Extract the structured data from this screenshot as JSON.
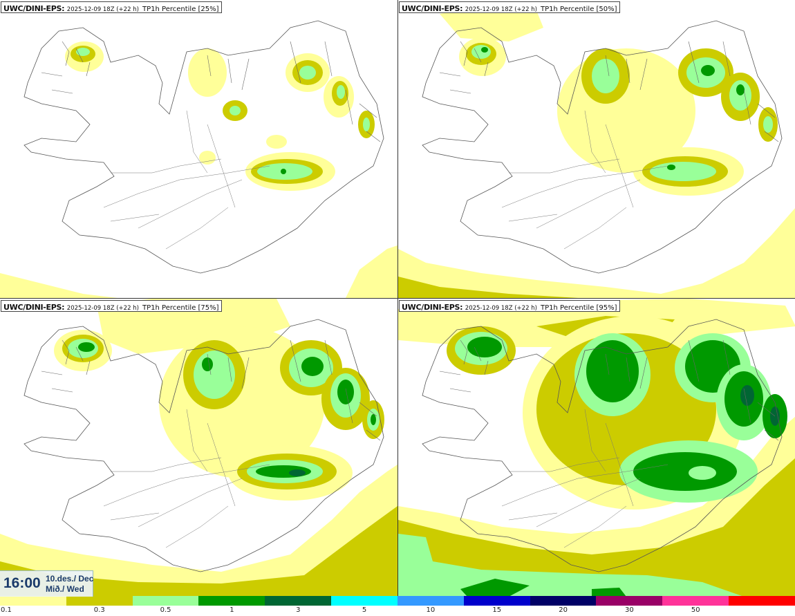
{
  "panels": [
    {
      "model": "UWC/DINI-EPS",
      "run": "2025-12-09 18Z (+22 h)",
      "variable": "TP1h Percentile [25%]",
      "percentile": 25
    },
    {
      "model": "UWC/DINI-EPS",
      "run": "2025-12-09 18Z (+22 h)",
      "variable": "TP1h Percentile [50%]",
      "percentile": 50
    },
    {
      "model": "UWC/DINI-EPS",
      "run": "2025-12-09 18Z (+22 h)",
      "variable": "TP1h Percentile [75%]",
      "percentile": 75
    },
    {
      "model": "UWC/DINI-EPS",
      "run": "2025-12-09 18Z (+22 h)",
      "variable": "TP1h Percentile [95%]",
      "percentile": 95
    }
  ],
  "valid_time": {
    "time": "16:00",
    "date_line1": "10.des./ Dec",
    "date_line2": "Mið./ Wed"
  },
  "legend": {
    "ticks": [
      "0.1",
      "0.3",
      "0.5",
      "1",
      "3",
      "5",
      "10",
      "15",
      "20",
      "30",
      "50"
    ],
    "colors": [
      "#ffff99",
      "#cccc00",
      "#99ff99",
      "#009900",
      "#006633",
      "#00ffff",
      "#3399ff",
      "#0000cc",
      "#000066",
      "#990066",
      "#ff3399",
      "#ff0000"
    ]
  },
  "map_colors": {
    "light": "#ffff99",
    "olive": "#cccc00",
    "lightgreen": "#99ff99",
    "green": "#009900",
    "darkgreen": "#006633",
    "coast": "#555555"
  }
}
